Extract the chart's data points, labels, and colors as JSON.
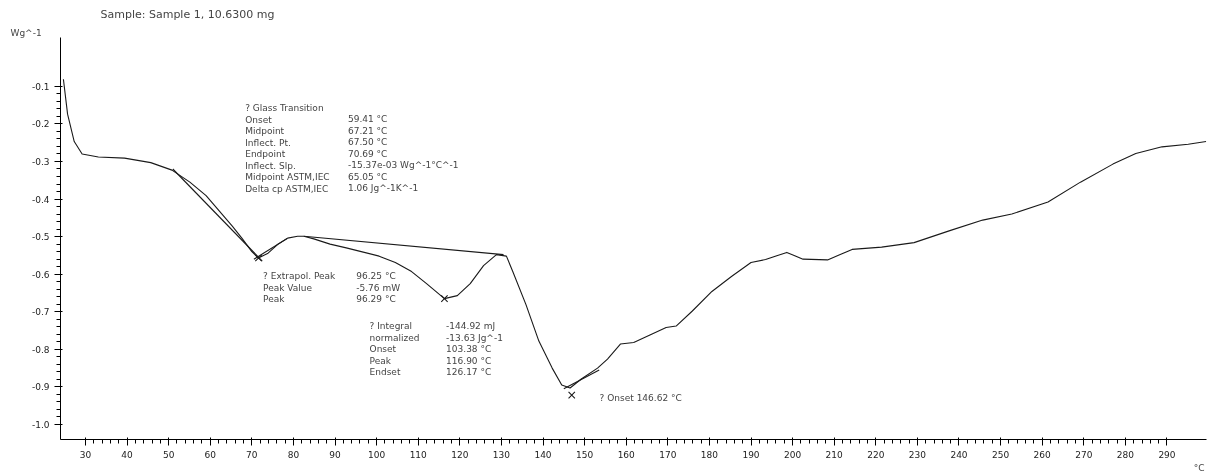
{
  "chart_data": {
    "type": "line",
    "title": "Sample: Sample 1, 10.6300 mg",
    "xlabel": "°C",
    "ylabel": "Wg^-1",
    "xlim": [
      24,
      299.5
    ],
    "ylim": [
      -1.04,
      0.03
    ],
    "xticks": [
      30,
      40,
      50,
      60,
      70,
      80,
      90,
      100,
      110,
      120,
      130,
      140,
      150,
      160,
      170,
      180,
      190,
      200,
      210,
      220,
      230,
      240,
      250,
      260,
      270,
      280,
      290
    ],
    "yticks": [
      -0.1,
      -0.2,
      -0.3,
      -0.4,
      -0.5,
      -0.6,
      -0.7,
      -0.8,
      -0.9,
      {
        "value": -1.0,
        "label": "-1.0"
      }
    ],
    "marker": "none",
    "series": [
      {
        "color": "#1a1a1a",
        "x": [
          24.7,
          25.7,
          27.3,
          29.2,
          33.1,
          39.4,
          45.7,
          50.8,
          55.1,
          59.0,
          62.2,
          65.3,
          67.6,
          70.0,
          71.6,
          73.9,
          76.3,
          78.6,
          81.0,
          82.5,
          84.9,
          88.8,
          92.7,
          96.3,
          100.6,
          104.5,
          108.4,
          112.0,
          116.3,
          119.4,
          122.5,
          125.7,
          128.8,
          131.2,
          132.7,
          135.9,
          139.0,
          142.2,
          144.5,
          146.5,
          149.2,
          153.1,
          155.5,
          158.6,
          161.8,
          165.7,
          169.6,
          172.0,
          175.9,
          180.6,
          185.3,
          190.0,
          193.5,
          198.6,
          202.5,
          208.4,
          214.3,
          221.4,
          229.2,
          237.8,
          245.7,
          252.7,
          261.4,
          269.2,
          277.0,
          282.5,
          288.8,
          295.1,
          299.4
        ],
        "values": [
          -0.081,
          -0.174,
          -0.247,
          -0.28,
          -0.288,
          -0.291,
          -0.303,
          -0.323,
          -0.355,
          -0.391,
          -0.432,
          -0.472,
          -0.504,
          -0.54,
          -0.557,
          -0.544,
          -0.52,
          -0.504,
          -0.499,
          -0.499,
          -0.506,
          -0.52,
          -0.53,
          -0.54,
          -0.552,
          -0.569,
          -0.593,
          -0.625,
          -0.665,
          -0.657,
          -0.625,
          -0.577,
          -0.548,
          -0.552,
          -0.592,
          -0.681,
          -0.778,
          -0.85,
          -0.895,
          -0.903,
          -0.879,
          -0.85,
          -0.826,
          -0.786,
          -0.782,
          -0.762,
          -0.742,
          -0.738,
          -0.698,
          -0.646,
          -0.606,
          -0.569,
          -0.561,
          -0.542,
          -0.56,
          -0.562,
          -0.534,
          -0.528,
          -0.516,
          -0.484,
          -0.456,
          -0.44,
          -0.408,
          -0.355,
          -0.307,
          -0.279,
          -0.261,
          -0.254,
          -0.247
        ]
      },
      {
        "type": "line",
        "color": "#1a1a1a",
        "x": [
          51.0,
          72.5
        ],
        "values": [
          -0.32,
          -0.565
        ]
      },
      {
        "type": "line",
        "color": "#1a1a1a",
        "x": [
          70.5,
          78.5
        ],
        "values": [
          -0.56,
          -0.505
        ]
      },
      {
        "type": "line",
        "color": "#1a1a1a",
        "x": [
          82.5,
          130.5
        ],
        "values": [
          -0.499,
          -0.548
        ]
      },
      {
        "type": "line",
        "color": "#1a1a1a",
        "x": [
          145.0,
          153.5
        ],
        "values": [
          -0.905,
          -0.855
        ]
      },
      {
        "type": "scatter",
        "marker": "x",
        "color": "#1a1a1a",
        "x": [
          71.6,
          116.3,
          146.9
        ],
        "values": [
          -0.557,
          -0.665,
          -0.922
        ]
      }
    ],
    "annotations": [
      "? Glass Transition\nOnset\nMidpoint\nInflect. Pt.\nEndpoint\nInflect. Slp.\nMidpoint ASTM,IEC\nDelta cp ASTM,IEC",
      "59.41 °C\n67.21 °C\n67.50 °C\n70.69 °C\n-15.37e-03 Wg^-1°C^-1\n65.05 °C\n1.06 Jg^-1K^-1",
      "? Extrapol. Peak\nPeak Value\nPeak",
      "96.25 °C\n-5.76 mW\n96.29 °C",
      "? Integral\n  normalized\nOnset\nPeak\nEndset",
      "-144.92 mJ\n-13.63 Jg^-1\n103.38 °C\n116.90 °C\n126.17 °C",
      "? Onset   146.62 °C"
    ]
  }
}
